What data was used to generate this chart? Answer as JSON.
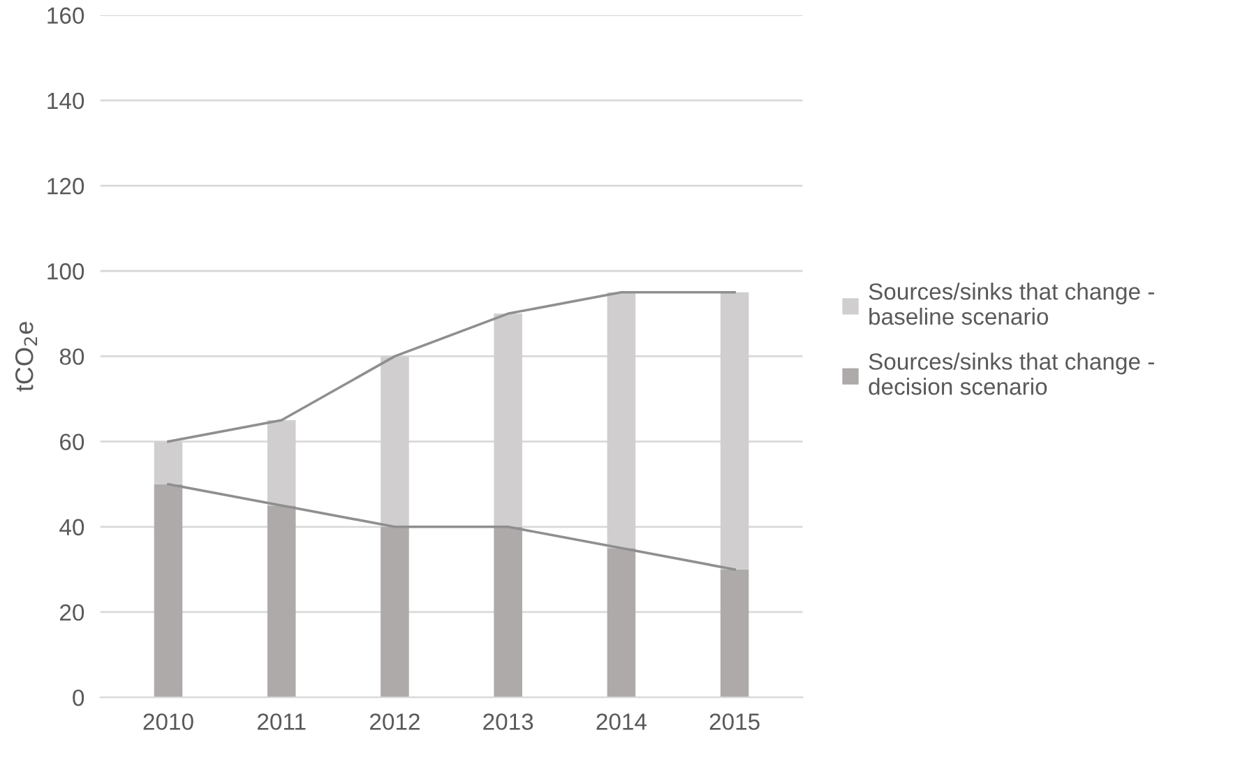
{
  "chart_data": {
    "type": "bar",
    "stacked": true,
    "ylabel": "tCO$_{2}$e",
    "categories": [
      "2010",
      "2011",
      "2012",
      "2013",
      "2014",
      "2015"
    ],
    "series": [
      {
        "name": "Sources/sinks that change - decision scenario",
        "color": "#aeaaaa",
        "values": [
          50,
          45,
          40,
          40,
          35,
          30
        ]
      },
      {
        "name": "Sources/sinks that change - baseline scenario",
        "color": "#d0cece",
        "values": [
          10,
          20,
          40,
          50,
          60,
          65
        ]
      },
      {
        "type": "line",
        "color": "#8f8f8f",
        "values": [
          60,
          65,
          80,
          90,
          95,
          95
        ]
      },
      {
        "type": "line",
        "color": "#8f8f8f",
        "values": [
          50,
          45,
          40,
          40,
          35,
          30
        ]
      }
    ],
    "ylim": [
      0,
      160
    ],
    "yticks": [
      0,
      20,
      40,
      60,
      80,
      100,
      120,
      140,
      160
    ],
    "grid": "y",
    "legend": "right"
  }
}
